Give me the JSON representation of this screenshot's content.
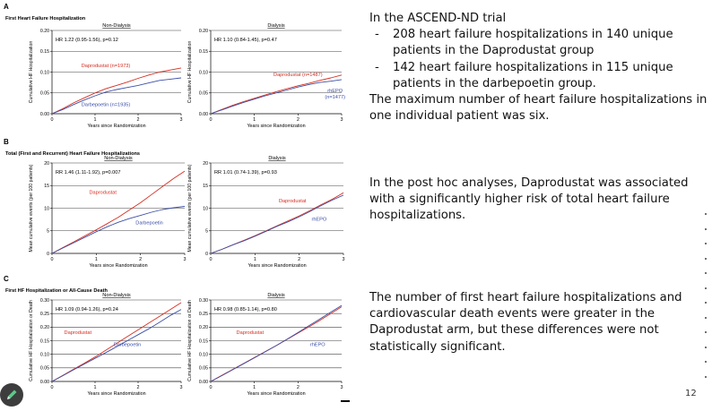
{
  "page_number": "12",
  "side_text": {
    "p1": "In the ASCEND-ND trial",
    "bullets": [
      "208 heart failure hospitalizations in 140 unique patients in the Daprodustat group",
      "142 heart failure hospitalizations in 115 unique patients in the darbepoetin group."
    ],
    "p2": "The maximum number of heart failure hospitalizations in one individual patient was six.",
    "p3": "In the post hoc analyses, Daprodustat was associated with a significantly higher risk of total  heart failure hospitalizations.",
    "p4": "The number of first heart failure hospitalizations and cardiovascular death events were greater in the Daprodustat arm, but these differences were not statistically significant."
  },
  "colors": {
    "dapro": "#d62d20",
    "comparator": "#3b4fa8",
    "grid": "#444444",
    "axis": "#000000"
  },
  "chart_data": [
    {
      "type": "line",
      "panel": "A",
      "section_title": "First Heart Failure Hospitalization",
      "title": "Non-Dialysis",
      "xlabel": "Years since Randomization",
      "ylabel": "Cumulative HF Hospitalization",
      "xlim": [
        0,
        3
      ],
      "ylim": [
        0,
        0.2
      ],
      "xticks": [
        0,
        1,
        2,
        3
      ],
      "yticks": [
        0,
        0.05,
        0.1,
        0.15,
        0.2
      ],
      "ytick_labels": [
        "0.00",
        "0.05",
        "0.10",
        "0.15",
        "0.20"
      ],
      "grid": "horizontal",
      "annotation": "HR 1.22 (0.95-1.56), p=0.12",
      "series": [
        {
          "name": "Daprodustat",
          "label": "Daprodustat (n=1973)",
          "color_key": "dapro",
          "label_at": [
            1.25,
            0.112
          ],
          "x": [
            0,
            0.25,
            0.5,
            0.75,
            1,
            1.25,
            1.5,
            1.75,
            2,
            2.25,
            2.5,
            2.75,
            3
          ],
          "y": [
            0,
            0.012,
            0.026,
            0.038,
            0.05,
            0.06,
            0.068,
            0.076,
            0.085,
            0.093,
            0.1,
            0.105,
            0.11
          ]
        },
        {
          "name": "Darbepoetin",
          "label": "Darbepoetin (n=1935)",
          "color_key": "comparator",
          "label_at": [
            1.25,
            0.018
          ],
          "x": [
            0,
            0.25,
            0.5,
            0.75,
            1,
            1.25,
            1.5,
            1.75,
            2,
            2.25,
            2.5,
            2.75,
            3
          ],
          "y": [
            0,
            0.01,
            0.022,
            0.033,
            0.043,
            0.052,
            0.058,
            0.063,
            0.068,
            0.074,
            0.08,
            0.083,
            0.086
          ]
        }
      ]
    },
    {
      "type": "line",
      "panel": "A",
      "title": "Dialysis",
      "xlabel": "Years since Randomization",
      "ylabel": "Cumulative HF Hospitalization",
      "xlim": [
        0,
        3
      ],
      "ylim": [
        0,
        0.2
      ],
      "xticks": [
        0,
        1,
        2,
        3
      ],
      "yticks": [
        0,
        0.05,
        0.1,
        0.15,
        0.2
      ],
      "ytick_labels": [
        "0.00",
        "0.05",
        "0.10",
        "0.15",
        "0.20"
      ],
      "grid": "horizontal",
      "annotation": "HR 1.10 (0.84-1.45), p=0.47",
      "series": [
        {
          "name": "Daprodustat",
          "label": "Daprodustat (n=1487)",
          "color_key": "dapro",
          "label_at": [
            2.0,
            0.09
          ],
          "x": [
            0,
            0.25,
            0.5,
            0.75,
            1,
            1.25,
            1.5,
            1.75,
            2,
            2.25,
            2.5,
            2.75,
            3
          ],
          "y": [
            0,
            0.01,
            0.02,
            0.029,
            0.037,
            0.045,
            0.053,
            0.06,
            0.067,
            0.073,
            0.08,
            0.086,
            0.093
          ]
        },
        {
          "name": "rhEPO",
          "label": "rhEPO",
          "sublabel": "(n=1477)",
          "color_key": "comparator",
          "label_at": [
            2.85,
            0.052
          ],
          "x": [
            0,
            0.25,
            0.5,
            0.75,
            1,
            1.25,
            1.5,
            1.75,
            2,
            2.25,
            2.5,
            2.75,
            3
          ],
          "y": [
            0,
            0.009,
            0.018,
            0.027,
            0.035,
            0.043,
            0.05,
            0.057,
            0.064,
            0.07,
            0.075,
            0.078,
            0.082
          ]
        }
      ]
    },
    {
      "type": "line",
      "panel": "B",
      "section_title": "Total (First and Recurrent) Heart Failure Hospitalizations",
      "title": "Non-Dialysis",
      "xlabel": "Years since Randomization",
      "ylabel": "Mean cumulative events (per 100 patients)",
      "xlim": [
        0,
        3
      ],
      "ylim": [
        0,
        20
      ],
      "xticks": [
        0,
        1,
        2,
        3
      ],
      "yticks": [
        0,
        5,
        10,
        15,
        20
      ],
      "ytick_labels": [
        "0",
        "5",
        "10",
        "15",
        "20"
      ],
      "grid": "horizontal",
      "annotation": "RR 1.46 (1.11-1.92), p=0.007",
      "series": [
        {
          "name": "Daprodustat",
          "label": "Daprodustat",
          "color_key": "dapro",
          "label_at": [
            1.15,
            13.2
          ],
          "x": [
            0,
            0.25,
            0.5,
            0.75,
            1,
            1.25,
            1.5,
            1.75,
            2,
            2.25,
            2.5,
            2.75,
            3
          ],
          "y": [
            0,
            1.3,
            2.6,
            3.9,
            5.2,
            6.6,
            8.0,
            9.6,
            11.2,
            13.0,
            14.8,
            16.6,
            18.2
          ]
        },
        {
          "name": "Darbepoetin",
          "label": "Darbepoetin",
          "color_key": "comparator",
          "label_at": [
            2.2,
            6.4
          ],
          "x": [
            0,
            0.25,
            0.5,
            0.75,
            1,
            1.25,
            1.5,
            1.75,
            2,
            2.25,
            2.5,
            2.75,
            3
          ],
          "y": [
            0,
            1.2,
            2.4,
            3.6,
            4.8,
            5.9,
            6.9,
            7.7,
            8.4,
            9.1,
            9.7,
            10.1,
            10.4
          ]
        }
      ]
    },
    {
      "type": "line",
      "panel": "B",
      "title": "Dialysis",
      "xlabel": "Years since Randomization",
      "ylabel": "Mean cumulative events (per 100 patients)",
      "xlim": [
        0,
        3
      ],
      "ylim": [
        0,
        20
      ],
      "xticks": [
        0,
        1,
        2,
        3
      ],
      "yticks": [
        0,
        5,
        10,
        15,
        20
      ],
      "ytick_labels": [
        "0",
        "5",
        "10",
        "15",
        "20"
      ],
      "grid": "horizontal",
      "annotation": "RR 1.01 (0.74-1.39), p=0.93",
      "series": [
        {
          "name": "Daprodustat",
          "label": "Daprodustat",
          "color_key": "dapro",
          "label_at": [
            1.85,
            11.3
          ],
          "x": [
            0,
            0.25,
            0.5,
            0.75,
            1,
            1.25,
            1.5,
            1.75,
            2,
            2.25,
            2.5,
            2.75,
            3
          ],
          "y": [
            0,
            0.9,
            1.9,
            2.9,
            3.9,
            5.0,
            6.1,
            7.2,
            8.3,
            9.5,
            10.8,
            12.0,
            13.4
          ]
        },
        {
          "name": "rhEPO",
          "label": "rhEPO",
          "color_key": "comparator",
          "label_at": [
            2.45,
            7.2
          ],
          "x": [
            0,
            0.25,
            0.5,
            0.75,
            1,
            1.25,
            1.5,
            1.75,
            2,
            2.25,
            2.5,
            2.75,
            3
          ],
          "y": [
            0,
            0.9,
            1.9,
            2.8,
            3.8,
            4.9,
            6.0,
            7.0,
            8.1,
            9.3,
            10.6,
            11.8,
            12.9
          ]
        }
      ]
    },
    {
      "type": "line",
      "panel": "C",
      "section_title": "First HF Hospitalization or All-Cause Death",
      "title": "Non-Dialysis",
      "xlabel": "Years since Randomization",
      "ylabel": "Cumulative HF Hospitalization or Death",
      "xlim": [
        0,
        3
      ],
      "ylim": [
        0,
        0.3
      ],
      "xticks": [
        0,
        1,
        2,
        3
      ],
      "yticks": [
        0,
        0.05,
        0.1,
        0.15,
        0.2,
        0.25,
        0.3
      ],
      "ytick_labels": [
        "0.00",
        "0.05",
        "0.10",
        "0.15",
        "0.20",
        "0.25",
        "0.30"
      ],
      "grid": "horizontal",
      "annotation": "HR 1.09 (0.94-1.26), p=0.24",
      "series": [
        {
          "name": "Daprodustat",
          "label": "Daprodustat",
          "color_key": "dapro",
          "label_at": [
            0.6,
            0.175
          ],
          "x": [
            0,
            0.25,
            0.5,
            0.75,
            1,
            1.25,
            1.5,
            1.75,
            2,
            2.25,
            2.5,
            2.75,
            3
          ],
          "y": [
            0,
            0.022,
            0.045,
            0.067,
            0.09,
            0.115,
            0.14,
            0.165,
            0.19,
            0.215,
            0.24,
            0.265,
            0.29
          ]
        },
        {
          "name": "Darbepoetin",
          "label": "Darbepoetin",
          "color_key": "comparator",
          "label_at": [
            1.75,
            0.13
          ],
          "x": [
            0,
            0.25,
            0.5,
            0.75,
            1,
            1.25,
            1.5,
            1.75,
            2,
            2.25,
            2.5,
            2.75,
            3
          ],
          "y": [
            0,
            0.021,
            0.043,
            0.064,
            0.085,
            0.106,
            0.128,
            0.15,
            0.172,
            0.194,
            0.218,
            0.243,
            0.265
          ]
        }
      ]
    },
    {
      "type": "line",
      "panel": "C",
      "title": "Dialysis",
      "xlabel": "Years since Randomization",
      "ylabel": "Cumulative HF Hospitalization or Death",
      "xlim": [
        0,
        3
      ],
      "ylim": [
        0,
        0.3
      ],
      "xticks": [
        0,
        1,
        2,
        3
      ],
      "yticks": [
        0,
        0.05,
        0.1,
        0.15,
        0.2,
        0.25,
        0.3
      ],
      "ytick_labels": [
        "0.00",
        "0.05",
        "0.10",
        "0.15",
        "0.20",
        "0.25",
        "0.30"
      ],
      "grid": "horizontal",
      "annotation": "HR 0.98 (0.85-1.14), p=0.80",
      "series": [
        {
          "name": "Daprodustat",
          "label": "Daprodustat",
          "color_key": "dapro",
          "label_at": [
            0.9,
            0.175
          ],
          "x": [
            0,
            0.25,
            0.5,
            0.75,
            1,
            1.25,
            1.5,
            1.75,
            2,
            2.25,
            2.5,
            2.75,
            3
          ],
          "y": [
            0,
            0.022,
            0.044,
            0.066,
            0.088,
            0.11,
            0.132,
            0.155,
            0.178,
            0.201,
            0.225,
            0.25,
            0.275
          ]
        },
        {
          "name": "rhEPO",
          "label": "rhEPO",
          "color_key": "comparator",
          "label_at": [
            2.45,
            0.13
          ],
          "x": [
            0,
            0.25,
            0.5,
            0.75,
            1,
            1.25,
            1.5,
            1.75,
            2,
            2.25,
            2.5,
            2.75,
            3
          ],
          "y": [
            0,
            0.021,
            0.043,
            0.065,
            0.087,
            0.109,
            0.132,
            0.156,
            0.18,
            0.205,
            0.23,
            0.255,
            0.28
          ]
        }
      ]
    }
  ]
}
